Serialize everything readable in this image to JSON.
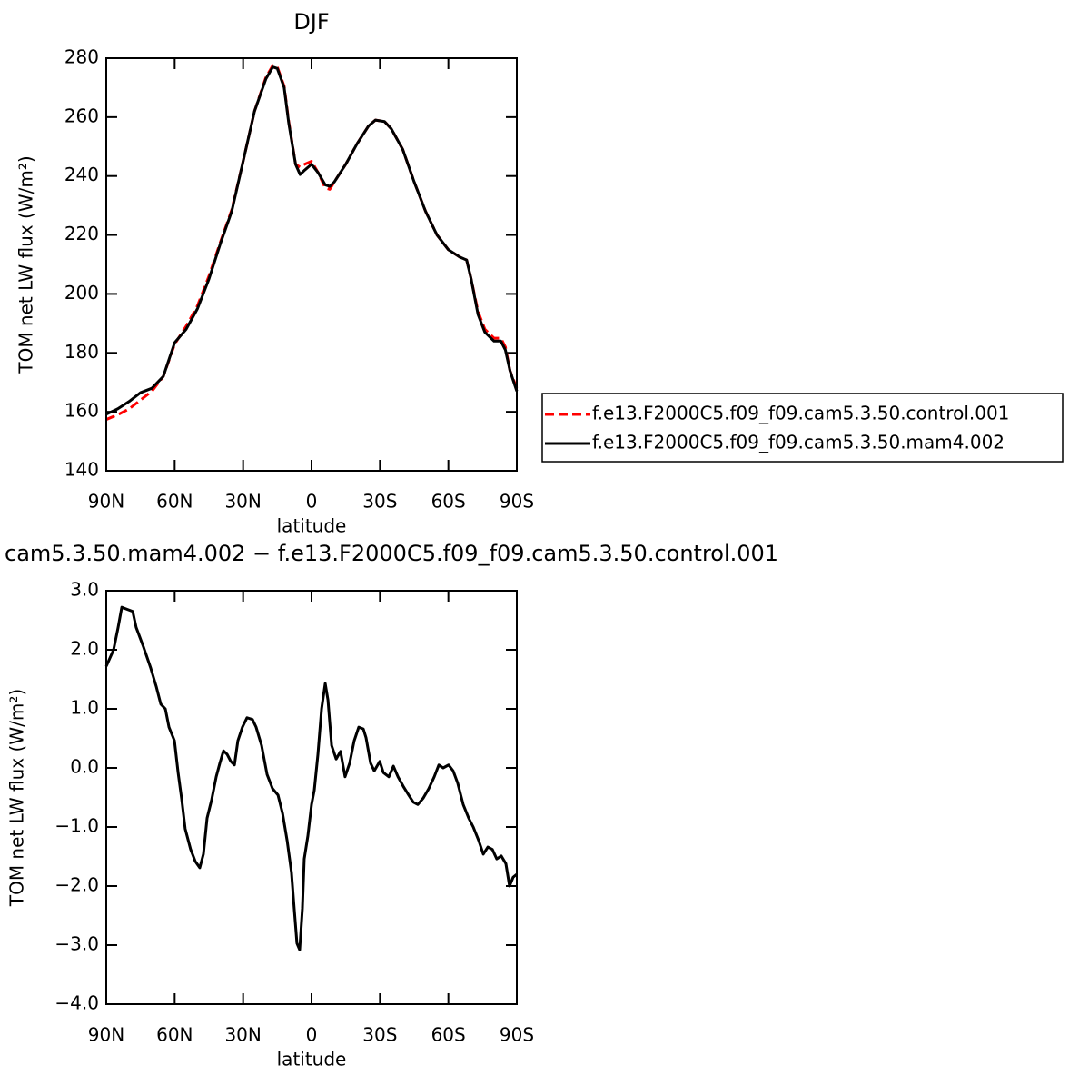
{
  "chart_data": [
    {
      "type": "line",
      "title": "DJF",
      "xlabel": "latitude",
      "ylabel": "TOM net LW flux (W/m²)",
      "xlim": [
        90,
        -90
      ],
      "xticks": [
        {
          "value": 90,
          "label": "90N"
        },
        {
          "value": 60,
          "label": "60N"
        },
        {
          "value": 30,
          "label": "30N"
        },
        0,
        {
          "value": -30,
          "label": "30S"
        },
        {
          "value": -60,
          "label": "60S"
        },
        {
          "value": -90,
          "label": "90S"
        }
      ],
      "ylim": [
        140,
        280
      ],
      "yticks": [
        140,
        160,
        180,
        200,
        220,
        240,
        260,
        280
      ],
      "legend": "right",
      "x": [
        90,
        85,
        80,
        75,
        70,
        65,
        60,
        55,
        50,
        45,
        40,
        35,
        30,
        25,
        20,
        17,
        15,
        12,
        10,
        7,
        5,
        3,
        0,
        -3,
        -6,
        -8,
        -10,
        -15,
        -20,
        -25,
        -28,
        -32,
        -35,
        -40,
        -45,
        -50,
        -55,
        -60,
        -65,
        -68,
        -70,
        -73,
        -76,
        -80,
        -83,
        -85,
        -87,
        -90
      ],
      "series": [
        {
          "name": "f.e13.F2000C5.f09_f09.cam5.3.50.control.001",
          "color": "#ff0000",
          "line_style": "dashed",
          "values": [
            157.4,
            159,
            161,
            164,
            167,
            172,
            183,
            189,
            196,
            206,
            217.5,
            228.5,
            245,
            262,
            273.5,
            277.5,
            277,
            270.5,
            258.5,
            244,
            243,
            244,
            245,
            241,
            236,
            235.5,
            238,
            244,
            251,
            257,
            259,
            258.5,
            256,
            249,
            238,
            228,
            220,
            215,
            212.5,
            211.5,
            205,
            194,
            188,
            185,
            185,
            182,
            174,
            168
          ]
        },
        {
          "name": "f.e13.F2000C5.f09_f09.cam5.3.50.mam4.002",
          "color": "#000000",
          "line_style": "solid",
          "values": [
            159.2,
            161,
            163.5,
            166.5,
            168,
            172,
            183.5,
            188,
            195,
            205,
            217,
            228,
            245,
            262,
            273,
            277,
            276.5,
            270,
            258,
            244,
            240.5,
            242,
            244,
            241,
            237,
            236.5,
            238,
            244,
            251,
            257,
            259,
            258.5,
            256,
            249,
            238,
            228,
            220,
            215,
            212.5,
            211.5,
            205,
            193,
            187,
            184,
            184,
            181,
            174,
            167
          ]
        }
      ]
    },
    {
      "type": "line",
      "title": "cam5.3.50.mam4.002 − f.e13.F2000C5.f09_f09.cam5.3.50.control.001",
      "xlabel": "latitude",
      "ylabel": "TOM net LW flux (W/m²)",
      "xlim": [
        90,
        -90
      ],
      "xticks": [
        {
          "value": 90,
          "label": "90N"
        },
        {
          "value": 60,
          "label": "60N"
        },
        {
          "value": 30,
          "label": "30N"
        },
        0,
        {
          "value": -30,
          "label": "30S"
        },
        {
          "value": -60,
          "label": "60S"
        },
        {
          "value": -90,
          "label": "90S"
        }
      ],
      "ylim": [
        -4,
        3
      ],
      "yticks": [
        {
          "value": -4,
          "label": "−4.0"
        },
        {
          "value": -3,
          "label": "−3.0"
        },
        {
          "value": -2,
          "label": "−2.0"
        },
        {
          "value": -1,
          "label": "−1.0"
        },
        {
          "value": 0,
          "label": "0.0"
        },
        {
          "value": 1,
          "label": "1.0"
        },
        {
          "value": 2,
          "label": "2.0"
        },
        {
          "value": 3,
          "label": "3.0"
        }
      ],
      "x": [
        90,
        86.8,
        84.8,
        83.2,
        81.2,
        78.4,
        76.9,
        73.7,
        70.5,
        68.1,
        66.1,
        64.1,
        62.5,
        60.1,
        58.5,
        56.9,
        55.4,
        53,
        51,
        49,
        47.4,
        45.8,
        43.8,
        41.8,
        40.2,
        38.6,
        37,
        35.4,
        33.8,
        32.3,
        30.3,
        28.3,
        25.9,
        24.3,
        21.9,
        19.5,
        17.1,
        14.7,
        12.7,
        10.7,
        8.8,
        7.6,
        6.4,
        5.2,
        4,
        3.2,
        1.6,
        0,
        -1.2,
        -2.8,
        -4.4,
        -6,
        -7.2,
        -8.8,
        -10.8,
        -12.7,
        -14.7,
        -16.7,
        -18.7,
        -20.7,
        -22.7,
        -23.9,
        -25.9,
        -27.5,
        -29.9,
        -31.5,
        -33.9,
        -35.9,
        -37.9,
        -40.2,
        -42.6,
        -44.6,
        -46.6,
        -49,
        -51.4,
        -53.8,
        -55.8,
        -57.7,
        -60.1,
        -62.1,
        -64.1,
        -66.5,
        -68.9,
        -70.9,
        -73.3,
        -75.3,
        -77.3,
        -79.3,
        -81.2,
        -83.2,
        -85.2,
        -86.8,
        -88.4,
        -90
      ],
      "series": [
        {
          "color": "#000000",
          "line_style": "solid",
          "values": [
            1.72,
            2.0,
            2.38,
            2.72,
            2.69,
            2.65,
            2.38,
            2.05,
            1.69,
            1.38,
            1.08,
            1.0,
            0.69,
            0.46,
            -0.08,
            -0.54,
            -1.03,
            -1.38,
            -1.58,
            -1.69,
            -1.46,
            -0.85,
            -0.54,
            -0.15,
            0.08,
            0.29,
            0.23,
            0.11,
            0.05,
            0.46,
            0.69,
            0.85,
            0.82,
            0.69,
            0.38,
            -0.11,
            -0.35,
            -0.46,
            -0.77,
            -1.23,
            -1.77,
            -2.38,
            -2.97,
            -3.08,
            -2.38,
            -1.54,
            -1.15,
            -0.62,
            -0.38,
            0.23,
            1.0,
            1.43,
            1.15,
            0.38,
            0.15,
            0.28,
            -0.15,
            0.08,
            0.46,
            0.69,
            0.66,
            0.51,
            0.08,
            -0.05,
            0.11,
            -0.08,
            -0.15,
            0.03,
            -0.15,
            -0.31,
            -0.46,
            -0.58,
            -0.62,
            -0.51,
            -0.35,
            -0.15,
            0.05,
            0.0,
            0.05,
            -0.05,
            -0.26,
            -0.62,
            -0.85,
            -1.0,
            -1.23,
            -1.46,
            -1.34,
            -1.38,
            -1.54,
            -1.49,
            -1.62,
            -2.0,
            -1.85,
            -1.8
          ]
        }
      ]
    }
  ]
}
